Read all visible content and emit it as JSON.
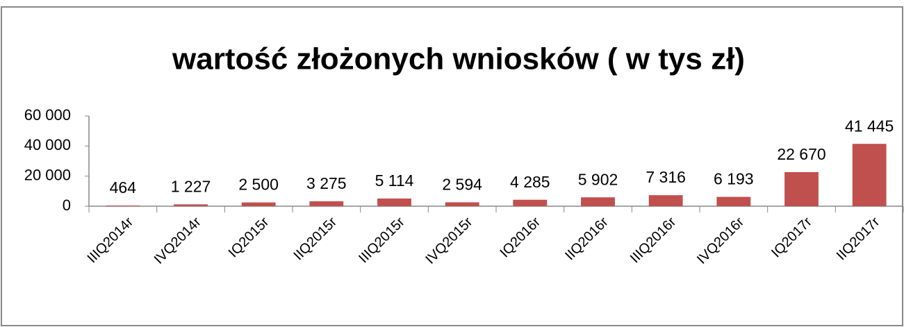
{
  "chart_data": {
    "type": "bar",
    "title": "wartość złożonych wniosków ( w tys zł)",
    "categories": [
      "IIIQ2014r",
      "IVQ2014r",
      "IQ2015r",
      "IIQ2015r",
      "IIIQ2015r",
      "IVQ2015r",
      "IQ2016r",
      "IIQ2016r",
      "IIIQ2016r",
      "IVQ2016r",
      "IQ2017r",
      "IIQ2017r"
    ],
    "values": [
      464,
      1227,
      2500,
      3275,
      5114,
      2594,
      4285,
      5902,
      7316,
      6193,
      22670,
      41445
    ],
    "value_labels": [
      "464",
      "1 227",
      "2 500",
      "3 275",
      "5 114",
      "2 594",
      "4 285",
      "5 902",
      "7 316",
      "6 193",
      "22 670",
      "41 445"
    ],
    "color": "#c0504d",
    "ylim": [
      0,
      60000
    ],
    "yticks": [
      0,
      {
        "value": 20000,
        "label": "20 000"
      },
      {
        "value": 40000,
        "label": "40 000"
      },
      {
        "value": 60000,
        "label": "60 000"
      }
    ],
    "grid": false
  }
}
